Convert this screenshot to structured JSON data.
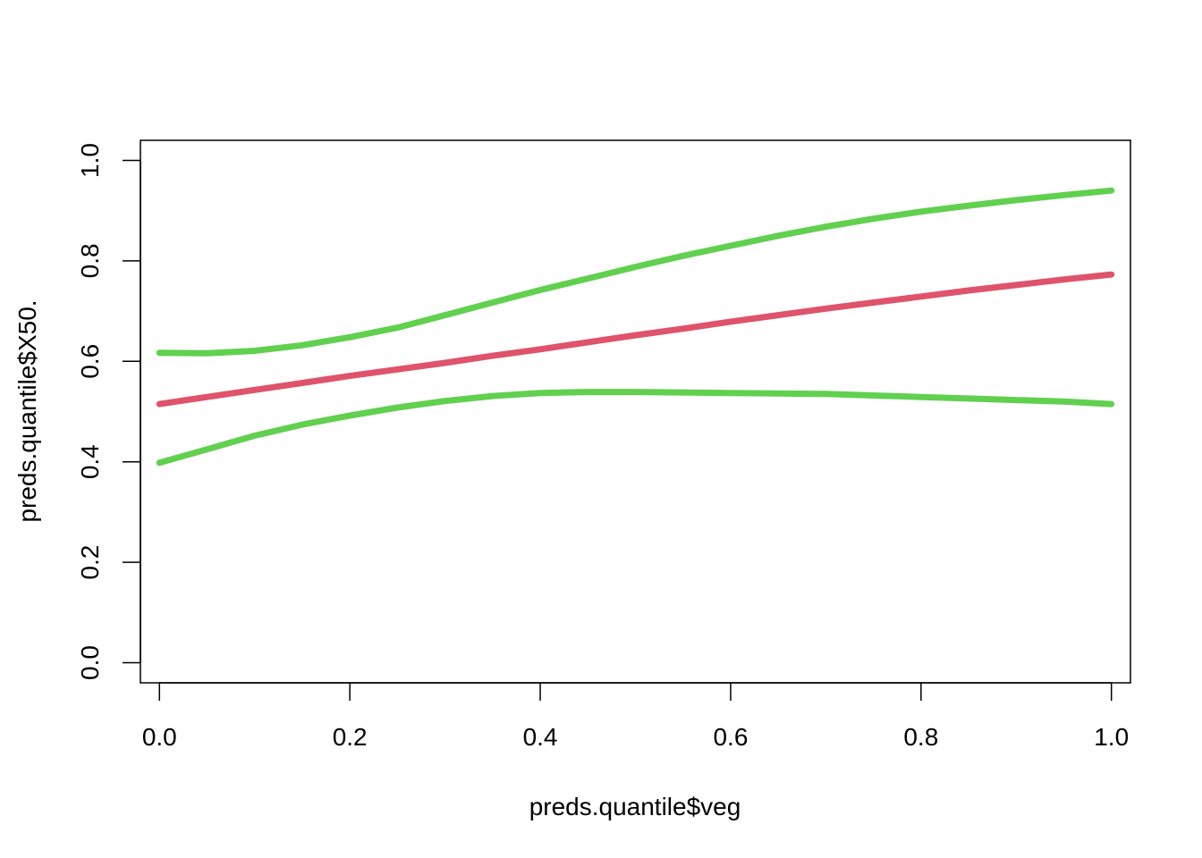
{
  "chart_data": {
    "type": "line",
    "title": "",
    "xlabel": "preds.quantile$veg",
    "ylabel": "preds.quantile$X50.",
    "xlim": [
      -0.02,
      1.02
    ],
    "ylim": [
      -0.04,
      1.04
    ],
    "x_ticks": [
      0.0,
      0.2,
      0.4,
      0.6,
      0.8,
      1.0
    ],
    "x_tick_labels": [
      "0.0",
      "0.2",
      "0.4",
      "0.6",
      "0.8",
      "1.0"
    ],
    "y_ticks": [
      0.0,
      0.2,
      0.4,
      0.6,
      0.8,
      1.0
    ],
    "y_tick_labels": [
      "0.0",
      "0.2",
      "0.4",
      "0.6",
      "0.8",
      "1.0"
    ],
    "grid": false,
    "legend": "none",
    "x": [
      0.0,
      0.05,
      0.1,
      0.15,
      0.2,
      0.25,
      0.3,
      0.35,
      0.4,
      0.45,
      0.5,
      0.55,
      0.6,
      0.65,
      0.7,
      0.75,
      0.8,
      0.85,
      0.9,
      0.95,
      1.0
    ],
    "series": [
      {
        "color": "#DF536B",
        "values": [
          0.515,
          0.529,
          0.543,
          0.557,
          0.571,
          0.584,
          0.597,
          0.611,
          0.624,
          0.638,
          0.652,
          0.665,
          0.679,
          0.692,
          0.705,
          0.717,
          0.729,
          0.741,
          0.752,
          0.763,
          0.773
        ]
      },
      {
        "color": "#61D04F",
        "values": [
          0.617,
          0.616,
          0.621,
          0.632,
          0.648,
          0.667,
          0.692,
          0.717,
          0.742,
          0.765,
          0.788,
          0.81,
          0.83,
          0.85,
          0.868,
          0.884,
          0.898,
          0.91,
          0.921,
          0.931,
          0.94
        ]
      },
      {
        "color": "#61D04F",
        "values": [
          0.398,
          0.425,
          0.452,
          0.474,
          0.492,
          0.508,
          0.521,
          0.531,
          0.537,
          0.539,
          0.539,
          0.538,
          0.537,
          0.536,
          0.535,
          0.532,
          0.529,
          0.526,
          0.523,
          0.52,
          0.515
        ]
      }
    ]
  }
}
